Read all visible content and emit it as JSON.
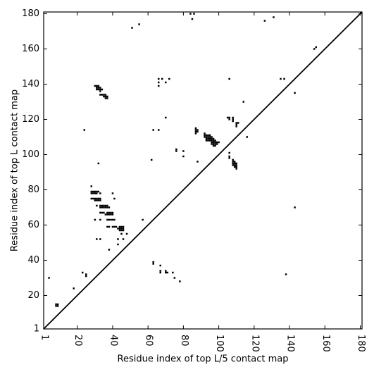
{
  "chart_data": {
    "type": "scatter",
    "x_label": "Residue index of top L/5 contact map",
    "y_label": "Residue index of top L contact map",
    "xlim": [
      1,
      181
    ],
    "ylim": [
      1,
      181
    ],
    "xticks": [
      1,
      20,
      40,
      60,
      80,
      100,
      120,
      140,
      160,
      180
    ],
    "yticks": [
      1,
      20,
      40,
      60,
      80,
      100,
      120,
      140,
      160,
      180
    ],
    "color": "#000000",
    "x": [
      4,
      8,
      9,
      8,
      9,
      18,
      23,
      25,
      25,
      24,
      32,
      30,
      31,
      32,
      31,
      32,
      33,
      31,
      32,
      33,
      34,
      33,
      33,
      34,
      35,
      36,
      35,
      36,
      37,
      36,
      37,
      28,
      28,
      29,
      30,
      31,
      32,
      28,
      29,
      30,
      31,
      33,
      40,
      28,
      29,
      30,
      31,
      32,
      33,
      41,
      30,
      31,
      32,
      33,
      31,
      33,
      34,
      35,
      36,
      37,
      33,
      34,
      35,
      36,
      37,
      38,
      33,
      34,
      35,
      37,
      38,
      39,
      40,
      36,
      37,
      38,
      39,
      40,
      30,
      33,
      37,
      38,
      39,
      40,
      41,
      37,
      38,
      40,
      41,
      42,
      44,
      45,
      46,
      43,
      44,
      45,
      46,
      44,
      45,
      46,
      45,
      48,
      31,
      33,
      43,
      46,
      43,
      38,
      57,
      62,
      63,
      66,
      66,
      68,
      72,
      66,
      66,
      70,
      70,
      76,
      76,
      80,
      80,
      87,
      87,
      88,
      87,
      88,
      87,
      88,
      92,
      92,
      93,
      94,
      95,
      92,
      93,
      94,
      95,
      96,
      93,
      94,
      95,
      96,
      97,
      93,
      94,
      95,
      96,
      97,
      98,
      96,
      97,
      98,
      99,
      100,
      96,
      97,
      98,
      99,
      97,
      98,
      106,
      106,
      106,
      108,
      108,
      109,
      108,
      109,
      110,
      108,
      109,
      110,
      109,
      110,
      110,
      106,
      105,
      106,
      106,
      108,
      108,
      108,
      110,
      110,
      111,
      110,
      114,
      116,
      84,
      86,
      85,
      51,
      55,
      126,
      131,
      135,
      137,
      143,
      154,
      155,
      63,
      63,
      67,
      67,
      67,
      70,
      70,
      71,
      74,
      75,
      78,
      138,
      143
    ],
    "values": [
      30,
      14,
      14,
      15,
      15,
      24,
      33,
      31,
      32,
      114,
      95,
      139,
      139,
      139,
      138,
      138,
      138,
      137,
      137,
      137,
      137,
      136,
      134,
      134,
      134,
      134,
      133,
      133,
      133,
      132,
      132,
      82,
      79,
      79,
      79,
      79,
      79,
      78,
      78,
      78,
      78,
      78,
      78,
      75,
      75,
      75,
      75,
      75,
      75,
      75,
      74,
      74,
      74,
      74,
      71,
      71,
      71,
      71,
      71,
      71,
      70,
      70,
      70,
      70,
      70,
      70,
      67,
      67,
      67,
      67,
      67,
      67,
      67,
      66,
      66,
      66,
      66,
      66,
      63,
      63,
      63,
      63,
      63,
      63,
      63,
      59,
      59,
      59,
      59,
      59,
      59,
      59,
      59,
      58,
      58,
      58,
      58,
      57,
      57,
      57,
      55,
      55,
      52,
      52,
      52,
      52,
      49,
      46,
      63,
      97,
      114,
      114,
      143,
      143,
      143,
      141,
      139,
      141,
      121,
      103,
      102,
      102,
      99,
      115,
      114,
      114,
      113,
      113,
      112,
      96,
      112,
      111,
      111,
      111,
      111,
      110,
      110,
      110,
      110,
      110,
      109,
      109,
      109,
      109,
      109,
      108,
      108,
      108,
      108,
      108,
      108,
      107,
      107,
      107,
      107,
      107,
      106,
      106,
      106,
      106,
      105,
      105,
      101,
      98,
      99,
      97,
      96,
      96,
      95,
      95,
      95,
      94,
      94,
      94,
      93,
      93,
      92,
      143,
      121,
      121,
      120,
      121,
      120,
      119,
      118,
      117,
      118,
      116,
      130,
      110,
      180,
      180,
      177,
      172,
      174,
      176,
      178,
      143,
      143,
      135,
      160,
      161,
      39,
      38,
      37,
      34,
      33,
      34,
      33,
      33,
      33,
      30,
      28,
      32,
      70
    ]
  }
}
